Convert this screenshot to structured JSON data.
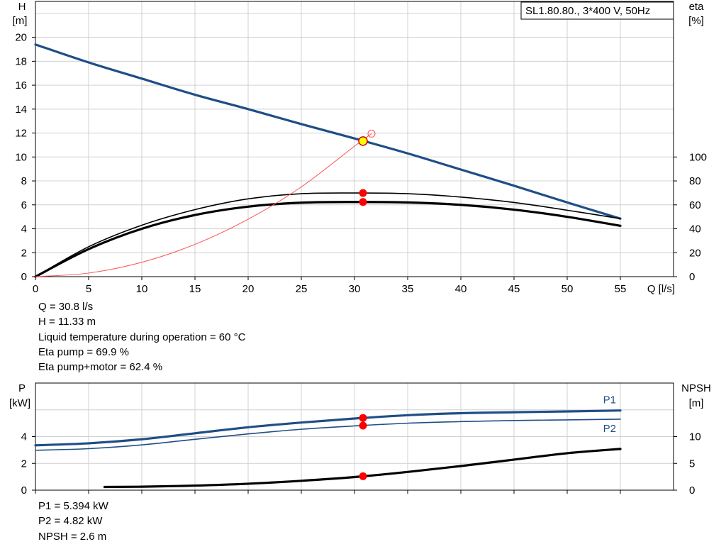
{
  "chart_data": [
    {
      "type": "line",
      "title": "SL1.80.80., 3*400 V, 50Hz",
      "xlabel": "Q [l/s]",
      "ylabel": [
        "H",
        "[m]"
      ],
      "y2label": [
        "eta",
        "[%]"
      ],
      "xlim": [
        0,
        60
      ],
      "ylim": [
        0,
        23
      ],
      "y2lim": [
        0,
        230
      ],
      "x_ticks": [
        0,
        5,
        10,
        15,
        20,
        25,
        30,
        35,
        40,
        45,
        50,
        55
      ],
      "y_ticks": [
        0,
        2,
        4,
        6,
        8,
        10,
        12,
        14,
        16,
        18,
        20
      ],
      "y2_ticks": [
        0,
        20,
        40,
        60,
        80,
        100
      ],
      "grid": true,
      "series": [
        {
          "key": "head",
          "axis": "y",
          "color": "#1f4e86",
          "width": 3.2,
          "x": [
            0,
            5,
            10,
            15,
            20,
            25,
            30,
            35,
            40,
            45,
            50,
            55
          ],
          "values": [
            19.4,
            17.9,
            16.55,
            15.2,
            14.0,
            12.75,
            11.55,
            10.3,
            8.95,
            7.6,
            6.2,
            4.85
          ]
        },
        {
          "key": "eta-pump",
          "axis": "y2",
          "color": "#000000",
          "width": 1.6,
          "x": [
            0,
            5,
            10,
            15,
            20,
            25,
            30,
            35,
            40,
            45,
            50,
            55
          ],
          "values": [
            0,
            25,
            43,
            56,
            65,
            69.3,
            69.9,
            69.3,
            66.5,
            62,
            55.5,
            48.5
          ]
        },
        {
          "key": "eta-pump-motor",
          "axis": "y2",
          "color": "#000000",
          "width": 3.2,
          "x": [
            0,
            5,
            10,
            15,
            20,
            25,
            30,
            35,
            40,
            45,
            50,
            55
          ],
          "values": [
            0,
            23,
            40,
            51.5,
            58.5,
            61.8,
            62.4,
            62,
            60,
            56,
            50,
            42.5
          ]
        },
        {
          "key": "system-curve",
          "axis": "y",
          "color": "#ff5050",
          "width": 1.0,
          "x": [
            0,
            5,
            10,
            15,
            20,
            25,
            30,
            31.6
          ],
          "values": [
            0,
            0.3,
            1.2,
            2.7,
            4.8,
            7.5,
            10.9,
            11.95
          ]
        }
      ],
      "markers": [
        {
          "kind": "duty",
          "x": 30.8,
          "y": 11.33,
          "axis": "y",
          "fill": "#ffff00",
          "stroke": "#cc0000"
        },
        {
          "kind": "open",
          "x": 31.6,
          "y": 11.95,
          "axis": "y",
          "fill": "none",
          "stroke": "#ff5050"
        },
        {
          "kind": "dot",
          "x": 30.8,
          "y": 69.9,
          "axis": "y2",
          "fill": "#ff0000"
        },
        {
          "kind": "dot",
          "x": 30.8,
          "y": 62.4,
          "axis": "y2",
          "fill": "#ff0000"
        }
      ],
      "legend": "top-right"
    },
    {
      "type": "line",
      "title": "",
      "xlabel": "",
      "ylabel": [
        "P",
        "[kW]"
      ],
      "y2label": [
        "NPSH",
        "[m]"
      ],
      "xlim": [
        0,
        60
      ],
      "ylim": [
        0,
        8
      ],
      "y2lim": [
        0,
        20
      ],
      "x_ticks": [
        0,
        5,
        10,
        15,
        20,
        25,
        30,
        35,
        40,
        45,
        50,
        55
      ],
      "y_ticks": [
        0,
        2,
        4
      ],
      "y2_ticks": [
        0,
        5,
        10
      ],
      "grid": true,
      "series": [
        {
          "key": "P1",
          "name": "P1",
          "axis": "y",
          "color": "#1f4e86",
          "width": 3.2,
          "x": [
            0,
            5,
            10,
            15,
            20,
            25,
            30,
            35,
            40,
            45,
            50,
            55
          ],
          "values": [
            3.35,
            3.5,
            3.8,
            4.25,
            4.7,
            5.05,
            5.35,
            5.6,
            5.75,
            5.82,
            5.88,
            5.95
          ]
        },
        {
          "key": "P2",
          "name": "P2",
          "axis": "y",
          "color": "#1f4e86",
          "width": 1.6,
          "x": [
            0,
            5,
            10,
            15,
            20,
            25,
            30,
            35,
            40,
            45,
            50,
            55
          ],
          "values": [
            2.98,
            3.1,
            3.38,
            3.8,
            4.2,
            4.55,
            4.8,
            5.0,
            5.12,
            5.2,
            5.25,
            5.3
          ]
        },
        {
          "key": "NPSH",
          "axis": "y2",
          "color": "#000000",
          "width": 3.2,
          "x": [
            6.5,
            10,
            15,
            20,
            25,
            30,
            35,
            40,
            45,
            50,
            55
          ],
          "values": [
            0.6,
            0.65,
            0.85,
            1.2,
            1.75,
            2.45,
            3.4,
            4.5,
            5.7,
            6.9,
            7.7
          ]
        }
      ],
      "markers": [
        {
          "kind": "dot",
          "x": 30.8,
          "y": 5.394,
          "axis": "y",
          "fill": "#ff0000"
        },
        {
          "kind": "dot",
          "x": 30.8,
          "y": 4.82,
          "axis": "y",
          "fill": "#ff0000"
        },
        {
          "kind": "dot",
          "x": 30.8,
          "y": 2.6,
          "axis": "y2",
          "fill": "#ff0000"
        }
      ]
    }
  ],
  "info_top": [
    "Q = 30.8 l/s",
    "H = 11.33 m",
    "Liquid temperature during operation = 60 °C",
    "Eta pump = 69.9 %",
    "Eta pump+motor = 62.4 %"
  ],
  "info_bottom": [
    "P1 = 5.394 kW",
    "P2 = 4.82 kW",
    "NPSH = 2.6 m"
  ]
}
